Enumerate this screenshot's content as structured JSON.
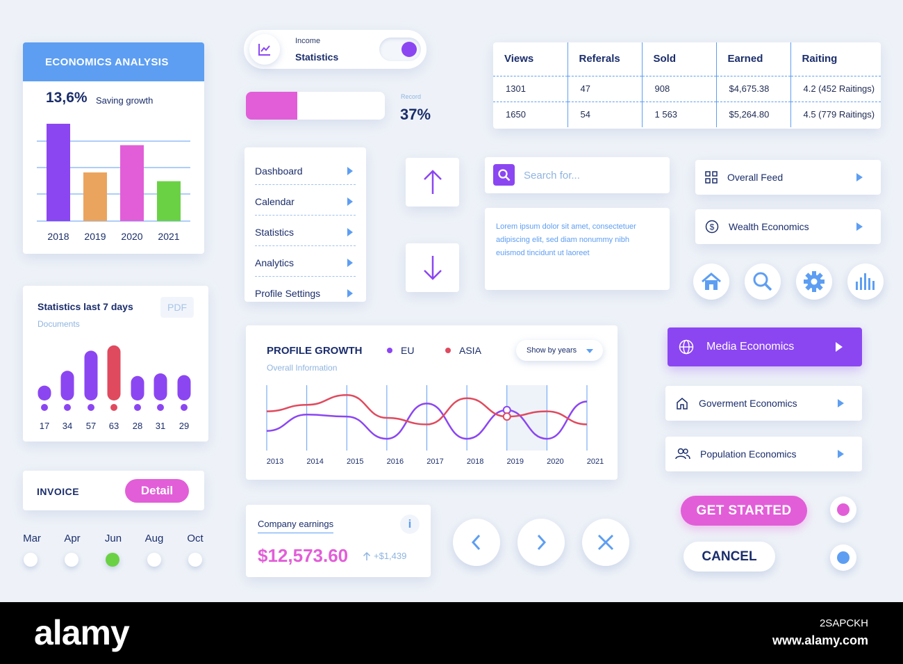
{
  "economics": {
    "title": "ECONOMICS ANALYSIS",
    "percent": "13,6%",
    "caption": "Saving growth",
    "chart_data": {
      "type": "bar",
      "categories": [
        "2018",
        "2019",
        "2020",
        "2021"
      ],
      "values": [
        100,
        50,
        78,
        41
      ],
      "colors": [
        "#8b46f2",
        "#eba45e",
        "#e25ed8",
        "#6ad145"
      ]
    }
  },
  "toggle": {
    "label_small": "Income",
    "label_main": "Statistics",
    "on": true,
    "icon": "line-chart-icon"
  },
  "progress": {
    "value": 0.37,
    "label": "Record",
    "value_text": "37%"
  },
  "table": {
    "headers": [
      "Views",
      "Referals",
      "Sold",
      "Earned",
      "Raiting"
    ],
    "rows": [
      [
        "1301",
        "47",
        "908",
        "$4,675.38",
        "4.2 (452 Raitings)"
      ],
      [
        "1650",
        "54",
        "1 563",
        "$5,264.80",
        "4.5 (779 Raitings)"
      ]
    ]
  },
  "menu": {
    "items": [
      "Dashboard",
      "Calendar",
      "Statistics",
      "Analytics",
      "Profile Settings"
    ]
  },
  "arrows": {
    "up_icon": "arrow-up-icon",
    "down_icon": "arrow-down-icon"
  },
  "search": {
    "placeholder": "Search for...",
    "value": ""
  },
  "lorem": "Lorem ipsum dolor sit amet, consectetuer adipiscing elit, sed diam nonummy nibh euismod tincidunt ut laoreet",
  "feed": {
    "overall": "Overall Feed",
    "wealth": "Wealth Economics"
  },
  "icon_buttons": [
    "home-icon",
    "search-icon",
    "gear-icon",
    "bar-chart-icon"
  ],
  "stats7": {
    "title": "Statistics last 7 days",
    "subtitle": "Documents",
    "pdf": "PDF",
    "chart_data": {
      "type": "bar",
      "values": [
        17,
        34,
        57,
        63,
        28,
        31,
        29
      ],
      "labels": [
        "17",
        "34",
        "57",
        "63",
        "28",
        "31",
        "29"
      ],
      "highlight_index": 3,
      "colors": {
        "normal": "#8b46f2",
        "highlight": "#e04a5e"
      }
    }
  },
  "growth": {
    "title": "PROFILE GROWTH",
    "subtitle": "Overall Information",
    "legend": [
      {
        "name": "EU",
        "color": "#8b46f2"
      },
      {
        "name": "ASIA",
        "color": "#e04a5e"
      }
    ],
    "select": "Show by years",
    "chart_data": {
      "type": "line",
      "x": [
        "2013",
        "2014",
        "2015",
        "2016",
        "2017",
        "2018",
        "2019",
        "2020",
        "2021"
      ],
      "series": [
        {
          "name": "EU",
          "values": [
            30,
            55,
            52,
            18,
            72,
            18,
            62,
            18,
            75
          ]
        },
        {
          "name": "ASIA",
          "values": [
            60,
            70,
            85,
            50,
            40,
            80,
            52,
            60,
            40
          ]
        }
      ],
      "ylim": [
        0,
        100
      ],
      "highlight_x": "2019"
    }
  },
  "media": {
    "label": "Media Economics"
  },
  "gov": {
    "label": "Goverment Economics"
  },
  "pop": {
    "label": "Population Economics"
  },
  "invoice": {
    "label": "INVOICE",
    "button": "Detail"
  },
  "months": {
    "labels": [
      "Mar",
      "Apr",
      "Jun",
      "Aug",
      "Oct"
    ],
    "selected": 2
  },
  "earnings": {
    "title": "Company earnings",
    "info": "i",
    "value": "$12,573.60",
    "delta": "+$1,439"
  },
  "nav": [
    "chevron-left-icon",
    "chevron-right-icon",
    "close-icon"
  ],
  "cta": {
    "primary": "GET STARTED",
    "secondary": "CANCEL"
  },
  "radios": {
    "colors": [
      "#e25ed8",
      "#5d9ef2"
    ]
  },
  "footer": {
    "brand": "alamy",
    "id": "2SAPCKH",
    "url": "www.alamy.com"
  }
}
